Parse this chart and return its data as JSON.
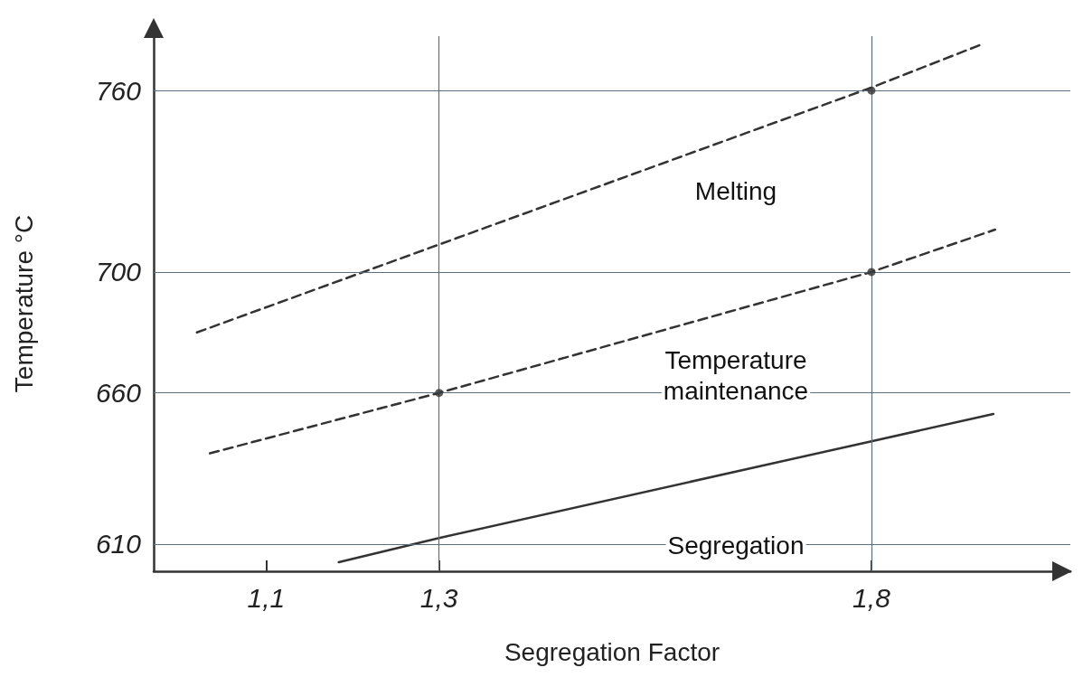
{
  "chart_data": {
    "type": "line",
    "xlabel": "Segregation Factor",
    "ylabel": "Temperature °C",
    "xlim": [
      0.97,
      2.03
    ],
    "ylim": [
      601,
      778
    ],
    "xticks": [
      {
        "value": 1.1,
        "label": "1,1"
      },
      {
        "value": 1.3,
        "label": "1,3"
      },
      {
        "value": 1.8,
        "label": "1,8"
      }
    ],
    "yticks": [
      610,
      660,
      700,
      760
    ],
    "grid": false,
    "marker": "none",
    "series": [
      {
        "name": "Melting",
        "color": "#333333",
        "line_style": "dashed",
        "x": [
          1.02,
          1.8,
          1.925
        ],
        "values": [
          680,
          761,
          775
        ]
      },
      {
        "name": "Temperature maintenance",
        "color": "#333333",
        "line_style": "dashed",
        "x": [
          1.035,
          1.3,
          1.8,
          1.943
        ],
        "values": [
          640,
          660,
          700,
          714
        ]
      },
      {
        "name": "Segregation",
        "color": "#333333",
        "line_style": "solid",
        "x": [
          1.184,
          1.3,
          1.8,
          1.941
        ],
        "values": [
          604,
          612,
          644,
          653
        ]
      },
      {
        "type": "scatter",
        "marker": "circle",
        "color": "#333333",
        "x": [
          1.3,
          1.8,
          1.8
        ],
        "values": [
          660,
          700,
          760
        ]
      }
    ],
    "ref_lines": [
      {
        "axis": "y",
        "value": 610,
        "color": "#5a7080"
      },
      {
        "axis": "y",
        "value": 660,
        "color": "#5a7080"
      },
      {
        "axis": "y",
        "value": 700,
        "color": "#5a7080"
      },
      {
        "axis": "y",
        "value": 760,
        "color": "#5a7080"
      },
      {
        "axis": "x",
        "value": 1.3,
        "color": "#5a7080"
      },
      {
        "axis": "x",
        "value": 1.8,
        "color": "#5a7080"
      }
    ]
  }
}
